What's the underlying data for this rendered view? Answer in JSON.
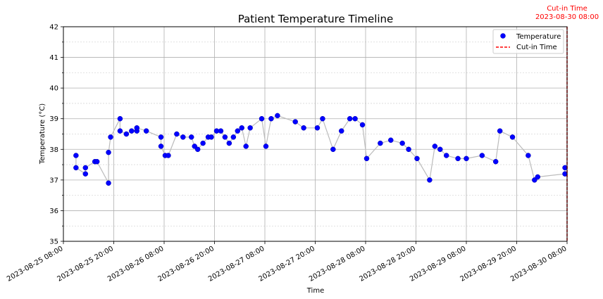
{
  "chart_data": {
    "type": "scatter",
    "title": "Patient Temperature Timeline",
    "xlabel": "Time",
    "ylabel": "Temperature (°C)",
    "x_range": [
      "2023-08-25 08:00",
      "2023-08-30 08:00"
    ],
    "ylim": [
      35,
      42
    ],
    "y_ticks": [
      35,
      36,
      37,
      38,
      39,
      40,
      41,
      42
    ],
    "x_ticks": [
      "2023-08-25 08:00",
      "2023-08-25 20:00",
      "2023-08-26 08:00",
      "2023-08-26 20:00",
      "2023-08-27 08:00",
      "2023-08-27 20:00",
      "2023-08-28 08:00",
      "2023-08-28 20:00",
      "2023-08-29 08:00",
      "2023-08-29 20:00",
      "2023-08-30 08:00"
    ],
    "grid": true,
    "minor_y_grid": true,
    "legend_position": "top-right",
    "series": [
      {
        "name": "Temperature",
        "color": "#0000ff",
        "line_color": "#bbbbbb",
        "points": [
          [
            "2023-08-25 11:00",
            37.8
          ],
          [
            "2023-08-25 11:00",
            37.4
          ],
          [
            "2023-08-25 13:15",
            37.2
          ],
          [
            "2023-08-25 13:15",
            37.4
          ],
          [
            "2023-08-25 15:30",
            37.6
          ],
          [
            "2023-08-25 16:00",
            37.6
          ],
          [
            "2023-08-25 18:45",
            36.9
          ],
          [
            "2023-08-25 18:45",
            37.9
          ],
          [
            "2023-08-25 19:15",
            38.4
          ],
          [
            "2023-08-25 21:30",
            39.0
          ],
          [
            "2023-08-25 21:30",
            38.6
          ],
          [
            "2023-08-25 23:00",
            38.5
          ],
          [
            "2023-08-26 00:15",
            38.6
          ],
          [
            "2023-08-26 01:30",
            38.6
          ],
          [
            "2023-08-26 01:30",
            38.7
          ],
          [
            "2023-08-26 03:45",
            38.6
          ],
          [
            "2023-08-26 07:15",
            38.4
          ],
          [
            "2023-08-26 07:15",
            38.1
          ],
          [
            "2023-08-26 08:15",
            37.8
          ],
          [
            "2023-08-26 09:00",
            37.8
          ],
          [
            "2023-08-26 11:00",
            38.5
          ],
          [
            "2023-08-26 12:30",
            38.4
          ],
          [
            "2023-08-26 14:30",
            38.4
          ],
          [
            "2023-08-26 15:15",
            38.1
          ],
          [
            "2023-08-26 16:00",
            38.0
          ],
          [
            "2023-08-26 17:15",
            38.2
          ],
          [
            "2023-08-26 18:30",
            38.4
          ],
          [
            "2023-08-26 19:15",
            38.4
          ],
          [
            "2023-08-26 20:30",
            38.6
          ],
          [
            "2023-08-26 21:30",
            38.6
          ],
          [
            "2023-08-26 22:30",
            38.4
          ],
          [
            "2023-08-26 23:30",
            38.2
          ],
          [
            "2023-08-27 00:30",
            38.4
          ],
          [
            "2023-08-27 01:30",
            38.6
          ],
          [
            "2023-08-27 02:30",
            38.7
          ],
          [
            "2023-08-27 03:30",
            38.1
          ],
          [
            "2023-08-27 04:30",
            38.7
          ],
          [
            "2023-08-27 07:15",
            39.0
          ],
          [
            "2023-08-27 08:15",
            38.1
          ],
          [
            "2023-08-27 09:30",
            39.0
          ],
          [
            "2023-08-27 11:00",
            39.1
          ],
          [
            "2023-08-27 15:15",
            38.9
          ],
          [
            "2023-08-27 17:15",
            38.7
          ],
          [
            "2023-08-27 20:30",
            38.7
          ],
          [
            "2023-08-27 21:45",
            39.0
          ],
          [
            "2023-08-28 00:15",
            38.0
          ],
          [
            "2023-08-28 02:15",
            38.6
          ],
          [
            "2023-08-28 04:15",
            39.0
          ],
          [
            "2023-08-28 05:30",
            39.0
          ],
          [
            "2023-08-28 07:15",
            38.8
          ],
          [
            "2023-08-28 08:15",
            37.7
          ],
          [
            "2023-08-28 11:30",
            38.2
          ],
          [
            "2023-08-28 14:00",
            38.3
          ],
          [
            "2023-08-28 16:45",
            38.2
          ],
          [
            "2023-08-28 18:15",
            38.0
          ],
          [
            "2023-08-28 20:15",
            37.7
          ],
          [
            "2023-08-28 23:15",
            37.0
          ],
          [
            "2023-08-29 00:30",
            38.1
          ],
          [
            "2023-08-29 01:45",
            38.0
          ],
          [
            "2023-08-29 03:15",
            37.8
          ],
          [
            "2023-08-29 06:00",
            37.7
          ],
          [
            "2023-08-29 08:00",
            37.7
          ],
          [
            "2023-08-29 11:45",
            37.8
          ],
          [
            "2023-08-29 15:00",
            37.6
          ],
          [
            "2023-08-29 16:00",
            38.6
          ],
          [
            "2023-08-29 19:00",
            38.4
          ],
          [
            "2023-08-29 22:45",
            37.8
          ],
          [
            "2023-08-30 00:15",
            37.0
          ],
          [
            "2023-08-30 01:00",
            37.1
          ],
          [
            "2023-08-30 07:30",
            37.2
          ],
          [
            "2023-08-30 07:30",
            37.4
          ]
        ]
      }
    ],
    "cutin": {
      "name": "Cut-in Time",
      "time": "2023-08-30 08:00",
      "color": "#ff0000",
      "label_line1": "Cut-in Time",
      "label_line2": "2023-08-30 08:00"
    }
  }
}
